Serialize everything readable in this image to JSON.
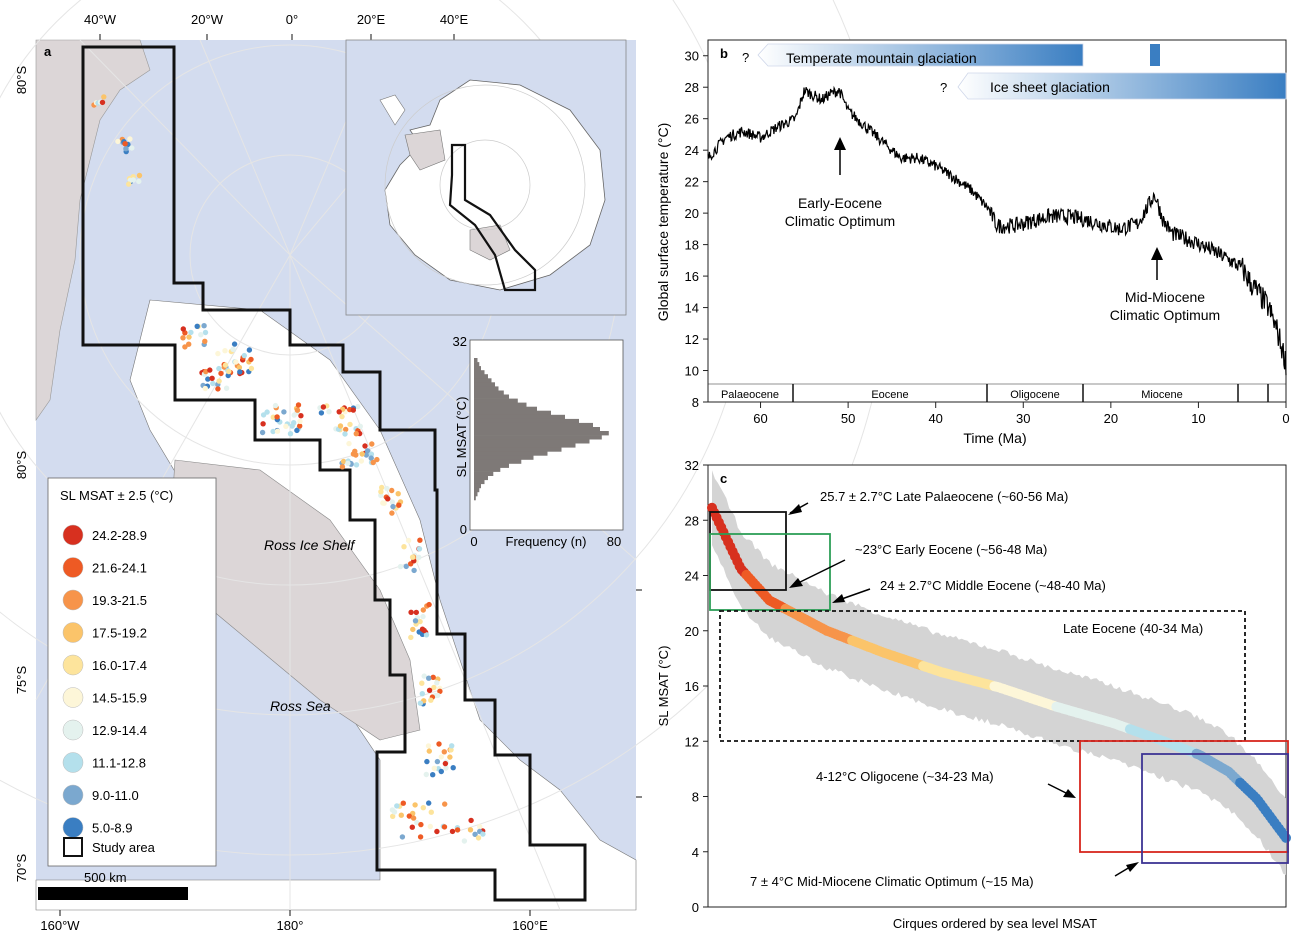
{
  "panel_a": {
    "label": "a",
    "top_lon_labels": [
      "40°W",
      "20°W",
      "0°",
      "20°E",
      "40°E"
    ],
    "bottom_lon_labels": [
      "160°W",
      "180°",
      "160°E"
    ],
    "lat_labels": [
      "80°S",
      "80°S",
      "75°S",
      "70°S"
    ],
    "place_ross_ice_shelf": "Ross Ice Shelf",
    "place_ross_sea": "Ross Sea",
    "scale_bar": "500 km",
    "legend": {
      "title": "SL MSAT ± 2.5 (°C)",
      "items": [
        {
          "label": "24.2-28.9",
          "color": "#d7301f"
        },
        {
          "label": "21.6-24.1",
          "color": "#ee5a24"
        },
        {
          "label": "19.3-21.5",
          "color": "#f7944a"
        },
        {
          "label": "17.5-19.2",
          "color": "#fbc46a"
        },
        {
          "label": "16.0-17.4",
          "color": "#fde49c"
        },
        {
          "label": "14.5-15.9",
          "color": "#fdf6d8"
        },
        {
          "label": "12.9-14.4",
          "color": "#e4f2ee"
        },
        {
          "label": "11.1-12.8",
          "color": "#b4e0ec"
        },
        {
          "label": "9.0-11.0",
          "color": "#7ba8cf"
        },
        {
          "label": "5.0-8.9",
          "color": "#3a7ec2"
        }
      ],
      "study_area": "Study area"
    },
    "histogram": {
      "ylabel": "SL MSAT  (°C)",
      "xlabel": "Frequency (n)",
      "x_ticks": [
        "0",
        "80"
      ],
      "y_ticks": [
        "32",
        "0"
      ],
      "frequencies": [
        2,
        3,
        4,
        6,
        8,
        10,
        12,
        14,
        17,
        20,
        25,
        30,
        36,
        44,
        52,
        60,
        68,
        72,
        77,
        73,
        66,
        58,
        50,
        42,
        34,
        27,
        20,
        15,
        11,
        8,
        6,
        4,
        3,
        2,
        1
      ]
    }
  },
  "panel_b": {
    "label": "b",
    "ylabel": "Global surface temperature (°C)",
    "xlabel": "Time (Ma)",
    "x_ticks": [
      "60",
      "50",
      "40",
      "30",
      "20",
      "10",
      "0"
    ],
    "y_ticks": [
      "30",
      "28",
      "26",
      "24",
      "22",
      "20",
      "18",
      "16",
      "14",
      "12",
      "10",
      "8"
    ],
    "epochs": [
      "Palaeocene",
      "Eocene",
      "Oligocene",
      "Miocene"
    ],
    "bar_mountain": "Temperate mountain glaciation",
    "bar_icesheet": "Ice sheet glaciation",
    "question_mark": "?",
    "ann_eeco": [
      "Early-Eocene",
      "Climatic Optimum"
    ],
    "ann_mmco": [
      "Mid-Miocene",
      "Climatic Optimum"
    ],
    "colors": {
      "glaciation_bar": "#3a7ec2"
    }
  },
  "panel_c": {
    "label": "c",
    "ylabel": "SL MSAT  (°C)",
    "xlabel": "Cirques ordered by sea level MSAT",
    "y_ticks": [
      "32",
      "28",
      "24",
      "20",
      "16",
      "12",
      "8",
      "4",
      "0"
    ],
    "ann_late_palaeocene": "25.7 ± 2.7°C Late Palaeocene (~60-56 Ma)",
    "ann_early_eocene": "~23°C Early Eocene (~56-48 Ma)",
    "ann_middle_eocene": "24 ± 2.7°C Middle Eocene (~48-40 Ma)",
    "ann_late_eocene": "Late Eocene (40-34 Ma)",
    "ann_oligocene": "4-12°C Oligocene (~34-23 Ma)",
    "ann_mmco": "7 ± 4°C Mid-Miocene Climatic Optimum (~15 Ma)",
    "box_colors": {
      "late_palaeocene": "#111111",
      "early_eocene": "#2e9e57",
      "oligocene": "#d7261e",
      "mmco": "#3d3494"
    }
  },
  "chart_data": [
    {
      "type": "line",
      "title": "",
      "xlabel": "Time (Ma)",
      "ylabel": "Global surface temperature (°C)",
      "xlim": [
        66,
        0
      ],
      "ylim": [
        8,
        31
      ],
      "series": [
        {
          "x": [
            66,
            64,
            62,
            60,
            58,
            56,
            55,
            53,
            52,
            51,
            50,
            49,
            48,
            46,
            44,
            42,
            40,
            38,
            36,
            34,
            33,
            31,
            29,
            27,
            25,
            23,
            21,
            19,
            17,
            16,
            15,
            14,
            13,
            11,
            9,
            7,
            5,
            4,
            3,
            2,
            1,
            0.5,
            0
          ],
          "y": [
            23.5,
            24.8,
            25.2,
            24.8,
            25.5,
            26,
            27.8,
            27.2,
            27.6,
            27.8,
            26.5,
            26,
            25.5,
            24.5,
            23.5,
            23.5,
            23,
            22.3,
            21.5,
            20.3,
            19.2,
            19.2,
            19.5,
            19.8,
            19.8,
            19.6,
            19.3,
            19,
            19.3,
            20.2,
            21.2,
            19.5,
            18.7,
            18.3,
            17.8,
            17.2,
            16.5,
            15.5,
            14.8,
            14,
            12.5,
            11.5,
            10.5
          ]
        }
      ]
    },
    {
      "type": "area",
      "title": "",
      "xlabel": "Cirques ordered by sea level MSAT",
      "ylabel": "SL MSAT  (°C)",
      "ylim": [
        0,
        32
      ],
      "series": [
        {
          "x": [
            0,
            0.05,
            0.1,
            0.2,
            0.3,
            0.4,
            0.5,
            0.6,
            0.7,
            0.8,
            0.85,
            0.9,
            0.95,
            1.0
          ],
          "y": [
            28.9,
            24.5,
            22.2,
            20,
            18.4,
            17,
            15.9,
            14.5,
            13.3,
            11.8,
            11,
            9.8,
            7.8,
            5.0
          ]
        }
      ]
    },
    {
      "type": "bar",
      "title": "",
      "xlabel": "Frequency (n)",
      "ylabel": "SL MSAT  (°C)",
      "categories": [
        "bins 0-32 °C"
      ],
      "values": [
        80
      ]
    }
  ]
}
